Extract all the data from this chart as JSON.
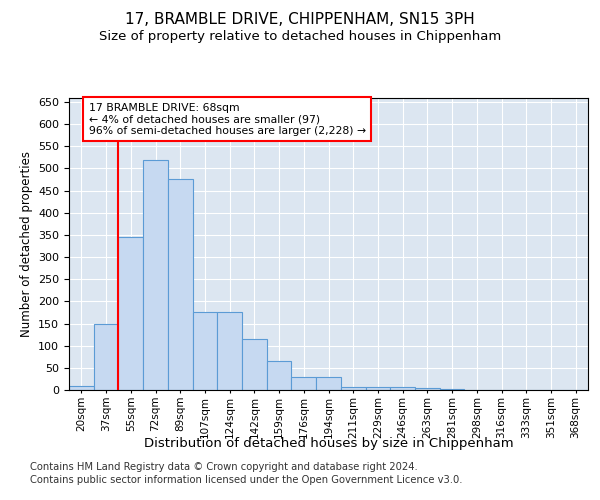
{
  "title": "17, BRAMBLE DRIVE, CHIPPENHAM, SN15 3PH",
  "subtitle": "Size of property relative to detached houses in Chippenham",
  "xlabel": "Distribution of detached houses by size in Chippenham",
  "ylabel": "Number of detached properties",
  "categories": [
    "20sqm",
    "37sqm",
    "55sqm",
    "72sqm",
    "89sqm",
    "107sqm",
    "124sqm",
    "142sqm",
    "159sqm",
    "176sqm",
    "194sqm",
    "211sqm",
    "229sqm",
    "246sqm",
    "263sqm",
    "281sqm",
    "298sqm",
    "316sqm",
    "333sqm",
    "351sqm",
    "368sqm"
  ],
  "values": [
    10,
    150,
    345,
    520,
    475,
    175,
    175,
    115,
    65,
    30,
    30,
    7,
    7,
    7,
    4,
    2,
    1,
    1,
    1,
    1,
    1
  ],
  "bar_color": "#c6d9f1",
  "bar_edge_color": "#5b9bd5",
  "vline_color": "red",
  "vline_pos": 1.5,
  "annotation_text": "17 BRAMBLE DRIVE: 68sqm\n← 4% of detached houses are smaller (97)\n96% of semi-detached houses are larger (2,228) →",
  "annotation_box_color": "white",
  "annotation_box_edge": "red",
  "ylim": [
    0,
    660
  ],
  "yticks": [
    0,
    50,
    100,
    150,
    200,
    250,
    300,
    350,
    400,
    450,
    500,
    550,
    600,
    650
  ],
  "bg_color": "#dce6f1",
  "footer1": "Contains HM Land Registry data © Crown copyright and database right 2024.",
  "footer2": "Contains public sector information licensed under the Open Government Licence v3.0."
}
